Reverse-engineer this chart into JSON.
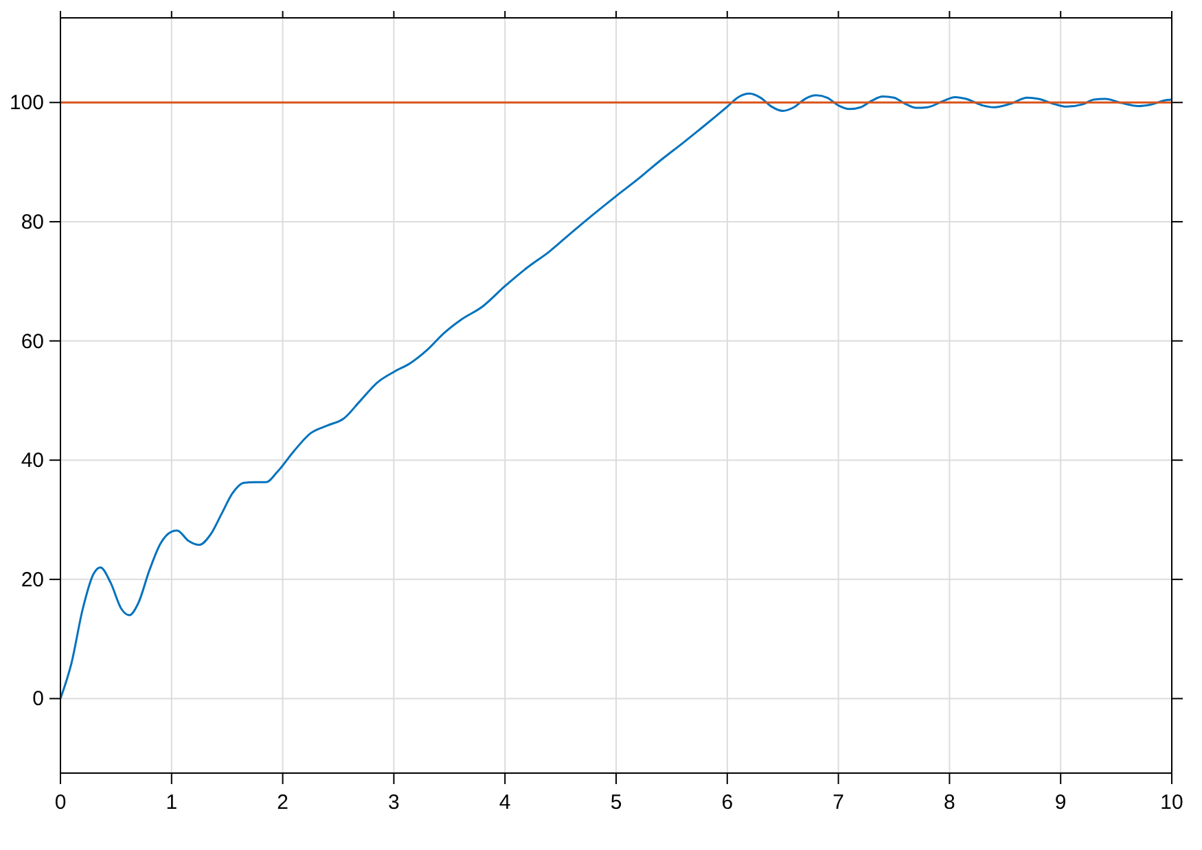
{
  "chart_data": {
    "type": "line",
    "xlim": [
      0,
      10
    ],
    "ylim": [
      -12.5,
      114.2
    ],
    "xticks": [
      0,
      1,
      2,
      3,
      4,
      5,
      6,
      7,
      8,
      9,
      10
    ],
    "yticks": [
      0,
      20,
      40,
      60,
      80,
      100
    ],
    "grid": true,
    "series": [
      {
        "color": "#0072bd",
        "x": [
          0,
          0.1,
          0.2,
          0.3,
          0.36,
          0.45,
          0.55,
          0.62,
          0.7,
          0.8,
          0.9,
          1.0,
          1.05,
          1.15,
          1.25,
          1.35,
          1.45,
          1.55,
          1.65,
          1.75,
          1.85,
          1.95,
          2.1,
          2.25,
          2.4,
          2.55,
          2.7,
          2.85,
          3.0,
          3.15,
          3.3,
          3.45,
          3.6,
          3.8,
          4.0,
          4.2,
          4.4,
          4.6,
          4.8,
          5.0,
          5.2,
          5.4,
          5.6,
          5.8,
          6.0,
          6.1,
          6.2,
          6.3,
          6.4,
          6.5,
          6.6,
          6.7,
          6.8,
          6.9,
          7.0,
          7.1,
          7.2,
          7.3,
          7.4,
          7.5,
          7.6,
          7.7,
          7.8,
          7.95,
          8.05,
          8.15,
          8.3,
          8.4,
          8.55,
          8.7,
          8.8,
          8.95,
          9.05,
          9.2,
          9.3,
          9.4,
          9.55,
          9.7,
          9.8,
          9.95,
          10
        ],
        "values": [
          0,
          6,
          15,
          21,
          22,
          19.5,
          15,
          14,
          16,
          21.5,
          26,
          28,
          28.2,
          26.5,
          25.8,
          27.5,
          31,
          34.5,
          36.2,
          36.3,
          36.3,
          38,
          41.5,
          44.5,
          45.8,
          47,
          50,
          53,
          54.8,
          56.3,
          58.5,
          61.3,
          63.5,
          65.8,
          69.2,
          72.3,
          75,
          78.2,
          81.3,
          84.3,
          87.2,
          90.3,
          93.2,
          96.2,
          99.3,
          100.9,
          101.5,
          100.8,
          99.3,
          98.6,
          99.2,
          100.6,
          101.2,
          100.8,
          99.5,
          98.9,
          99.2,
          100.3,
          101,
          100.8,
          99.8,
          99.1,
          99.2,
          100.3,
          100.9,
          100.6,
          99.5,
          99.2,
          99.8,
          100.8,
          100.6,
          99.7,
          99.3,
          99.7,
          100.5,
          100.6,
          99.9,
          99.4,
          99.6,
          100.4,
          100.5
        ]
      },
      {
        "color": "#d95319",
        "x": [
          0,
          10
        ],
        "values": [
          100,
          100
        ]
      }
    ]
  }
}
